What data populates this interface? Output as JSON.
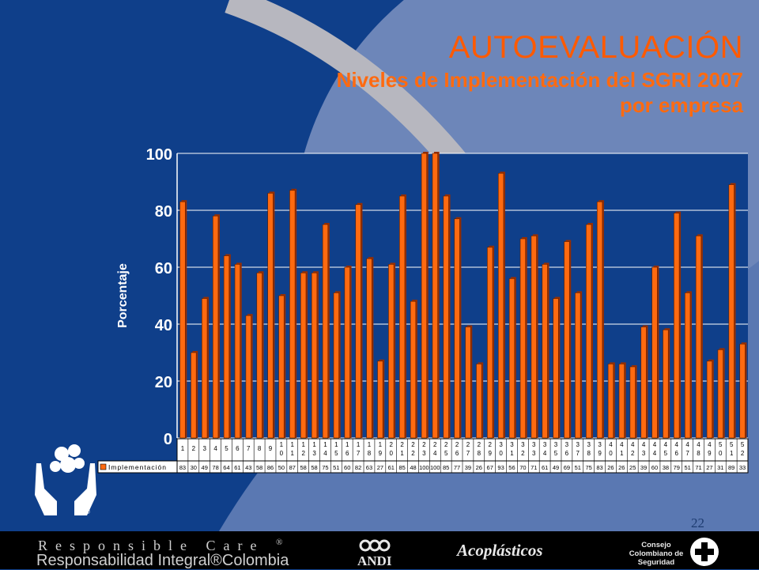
{
  "header": {
    "title": "AUTOEVALUACIÓN",
    "subtitle_line1": "Niveles de Implementación del SGRI 2007",
    "subtitle_line2": "por empresa"
  },
  "page_number": "22",
  "footer": {
    "responsible_care": "Responsible Care",
    "responsible_care_mark": "®",
    "responsabilidad": "Responsabilidad Integral®Colombia",
    "andi": "ANDI",
    "acoplasticos": "Acoplásticos",
    "consejo_line1": "Consejo",
    "consejo_line2": "Colombiano de",
    "consejo_line3": "Seguridad"
  },
  "colors": {
    "background": "#0f3f8a",
    "title": "#ff5a00",
    "bar": "#ff6a10",
    "bar_dark": "#9a2e00",
    "plot_bg": "#0f3f8a",
    "gridline": "#ffffff"
  },
  "chart_data": {
    "type": "bar",
    "title": "",
    "xlabel": "",
    "ylabel": "Porcentaje",
    "ylim": [
      0,
      100
    ],
    "yticks": [
      "0",
      "20",
      "40",
      "60",
      "80",
      "100"
    ],
    "grid": true,
    "legend_position": "bottom-table",
    "categories": [
      "1",
      "2",
      "3",
      "4",
      "5",
      "6",
      "7",
      "8",
      "9",
      "10",
      "11",
      "12",
      "13",
      "14",
      "15",
      "16",
      "17",
      "18",
      "19",
      "20",
      "21",
      "22",
      "23",
      "24",
      "25",
      "26",
      "27",
      "28",
      "29",
      "30",
      "31",
      "32",
      "33",
      "34",
      "35",
      "36",
      "37",
      "38",
      "39",
      "40",
      "41",
      "42",
      "43",
      "44",
      "45",
      "46",
      "47",
      "48",
      "49",
      "50",
      "51",
      "52"
    ],
    "series": [
      {
        "name": "Implementación",
        "values": [
          83,
          30,
          49,
          78,
          64,
          61,
          43,
          58,
          86,
          50,
          87,
          58,
          58,
          75,
          51,
          60,
          82,
          63,
          27,
          61,
          85,
          48,
          100,
          100,
          85,
          77,
          39,
          26,
          67,
          93,
          56,
          70,
          71,
          61,
          49,
          69,
          51,
          75,
          83,
          26,
          26,
          25,
          39,
          60,
          38,
          79,
          51,
          71,
          27,
          31,
          89,
          33
        ]
      }
    ]
  }
}
